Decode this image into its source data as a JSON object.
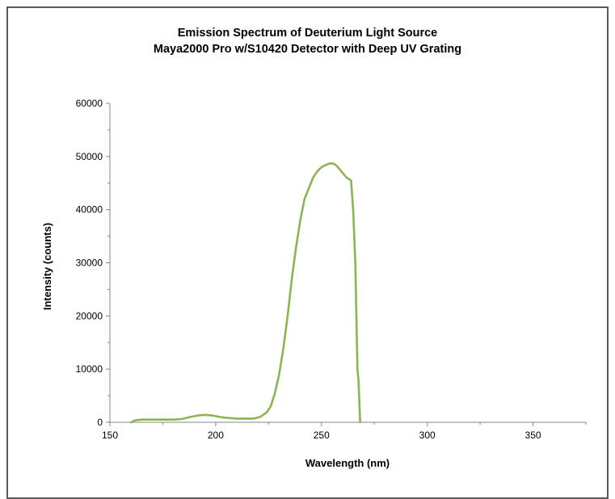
{
  "chart_data": {
    "type": "line",
    "title": "Emission Spectrum of Deuterium Light Source",
    "subtitle": "Maya2000 Pro w/S10420 Detector with Deep UV Grating",
    "xlabel": "Wavelength (nm)",
    "ylabel": "Intensity (counts)",
    "xlim": [
      150,
      375
    ],
    "ylim": [
      0,
      60000
    ],
    "x_ticks": [
      150,
      200,
      250,
      300,
      350
    ],
    "y_ticks": [
      0,
      10000,
      20000,
      30000,
      40000,
      50000,
      60000
    ],
    "grid": false,
    "legend": "none",
    "series": [
      {
        "color": "#8db454",
        "x": [
          160,
          162,
          165,
          170,
          175,
          180,
          184,
          188,
          192,
          195,
          198,
          202,
          206,
          210,
          214,
          218,
          221,
          224,
          226,
          228,
          230,
          232,
          234,
          236,
          238,
          240,
          242,
          244,
          246,
          248,
          250,
          252,
          254,
          255,
          256,
          257,
          258,
          260,
          262,
          264,
          265,
          266,
          266.5,
          267,
          267.5,
          268,
          268.3
        ],
        "y": [
          0,
          400,
          500,
          500,
          500,
          500,
          600,
          1000,
          1300,
          1400,
          1300,
          1000,
          800,
          700,
          700,
          700,
          1000,
          1800,
          3000,
          5500,
          9000,
          14000,
          20000,
          27000,
          33000,
          38000,
          42000,
          44000,
          46000,
          47200,
          48000,
          48400,
          48700,
          48700,
          48600,
          48300,
          47900,
          46900,
          46000,
          45500,
          40000,
          30000,
          20000,
          10000,
          8000,
          3000,
          0
        ]
      }
    ]
  }
}
